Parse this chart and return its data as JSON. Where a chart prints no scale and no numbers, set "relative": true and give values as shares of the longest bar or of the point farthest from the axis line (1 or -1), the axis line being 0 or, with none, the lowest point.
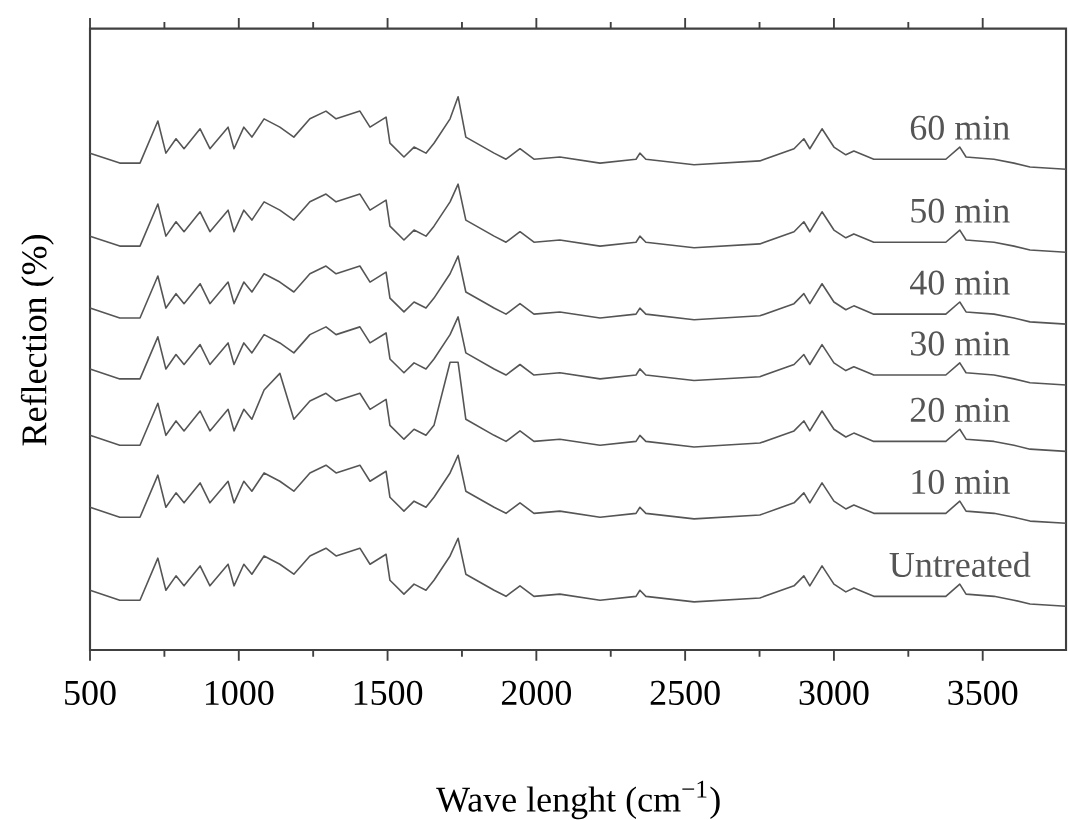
{
  "chart_data": {
    "type": "line",
    "relative": true,
    "xlabel": "Wave lenght (cm$^{−1}$)",
    "ylabel": "Reflection (%)",
    "xlim": [
      500,
      3780
    ],
    "xticks": [
      500,
      1000,
      1500,
      2000,
      2500,
      3000,
      3500
    ],
    "marker": "none",
    "line_style": "solid",
    "x": [
      500,
      600,
      668,
      728,
      755,
      789,
      816,
      870,
      903,
      964,
      984,
      1017,
      1044,
      1085,
      1138,
      1185,
      1239,
      1293,
      1327,
      1407,
      1441,
      1495,
      1508,
      1555,
      1589,
      1629,
      1656,
      1710,
      1737,
      1763,
      1858,
      1898,
      1945,
      1992,
      2079,
      2214,
      2335,
      2348,
      2368,
      2530,
      2751,
      2866,
      2899,
      2919,
      2960,
      3000,
      3040,
      3067,
      3134,
      3376,
      3423,
      3444,
      3538,
      3605,
      3659,
      3780
    ],
    "series": [
      {
        "name": "60 min",
        "color": "#555555",
        "values": [
          0.898,
          0.88,
          0.88,
          0.956,
          0.898,
          0.924,
          0.906,
          0.942,
          0.906,
          0.945,
          0.906,
          0.945,
          0.927,
          0.96,
          0.945,
          0.927,
          0.96,
          0.974,
          0.96,
          0.974,
          0.945,
          0.963,
          0.916,
          0.891,
          0.909,
          0.898,
          0.916,
          0.96,
          1.0,
          0.927,
          0.898,
          0.887,
          0.906,
          0.887,
          0.891,
          0.88,
          0.887,
          0.898,
          0.887,
          0.877,
          0.884,
          0.906,
          0.924,
          0.906,
          0.942,
          0.909,
          0.895,
          0.902,
          0.887,
          0.887,
          0.909,
          0.891,
          0.887,
          0.88,
          0.873,
          0.869
        ]
      },
      {
        "name": "50 min",
        "color": "#555555",
        "values": [
          0.748,
          0.73,
          0.73,
          0.806,
          0.748,
          0.774,
          0.756,
          0.792,
          0.756,
          0.795,
          0.756,
          0.795,
          0.777,
          0.81,
          0.795,
          0.777,
          0.81,
          0.824,
          0.81,
          0.824,
          0.795,
          0.813,
          0.766,
          0.741,
          0.759,
          0.748,
          0.766,
          0.81,
          0.842,
          0.777,
          0.748,
          0.737,
          0.756,
          0.737,
          0.741,
          0.73,
          0.737,
          0.748,
          0.737,
          0.727,
          0.734,
          0.756,
          0.774,
          0.756,
          0.792,
          0.759,
          0.745,
          0.752,
          0.737,
          0.737,
          0.759,
          0.741,
          0.737,
          0.73,
          0.723,
          0.719
        ]
      },
      {
        "name": "40 min",
        "color": "#555555",
        "values": [
          0.618,
          0.6,
          0.6,
          0.676,
          0.618,
          0.644,
          0.626,
          0.662,
          0.626,
          0.665,
          0.626,
          0.665,
          0.647,
          0.68,
          0.665,
          0.647,
          0.68,
          0.694,
          0.68,
          0.694,
          0.665,
          0.683,
          0.636,
          0.611,
          0.629,
          0.618,
          0.636,
          0.68,
          0.712,
          0.647,
          0.618,
          0.607,
          0.626,
          0.607,
          0.611,
          0.6,
          0.607,
          0.618,
          0.607,
          0.597,
          0.604,
          0.626,
          0.644,
          0.626,
          0.662,
          0.629,
          0.615,
          0.622,
          0.607,
          0.607,
          0.629,
          0.611,
          0.607,
          0.6,
          0.593,
          0.589
        ]
      },
      {
        "name": "30 min",
        "color": "#555555",
        "values": [
          0.508,
          0.49,
          0.49,
          0.566,
          0.508,
          0.534,
          0.516,
          0.552,
          0.516,
          0.555,
          0.516,
          0.555,
          0.537,
          0.57,
          0.555,
          0.537,
          0.57,
          0.584,
          0.57,
          0.584,
          0.555,
          0.573,
          0.526,
          0.501,
          0.519,
          0.508,
          0.526,
          0.57,
          0.602,
          0.537,
          0.508,
          0.497,
          0.516,
          0.497,
          0.501,
          0.49,
          0.497,
          0.508,
          0.497,
          0.487,
          0.494,
          0.516,
          0.534,
          0.516,
          0.552,
          0.519,
          0.505,
          0.512,
          0.497,
          0.497,
          0.519,
          0.501,
          0.497,
          0.49,
          0.483,
          0.479
        ]
      },
      {
        "name": "20 min",
        "color": "#555555",
        "values": [
          0.388,
          0.37,
          0.37,
          0.446,
          0.388,
          0.414,
          0.396,
          0.432,
          0.396,
          0.435,
          0.396,
          0.435,
          0.417,
          0.47,
          0.5,
          0.417,
          0.45,
          0.464,
          0.45,
          0.464,
          0.435,
          0.453,
          0.406,
          0.381,
          0.399,
          0.388,
          0.406,
          0.52,
          0.52,
          0.417,
          0.388,
          0.377,
          0.396,
          0.377,
          0.381,
          0.37,
          0.377,
          0.388,
          0.377,
          0.367,
          0.374,
          0.396,
          0.414,
          0.396,
          0.432,
          0.399,
          0.385,
          0.392,
          0.377,
          0.377,
          0.399,
          0.381,
          0.377,
          0.37,
          0.363,
          0.359
        ]
      },
      {
        "name": "10 min",
        "color": "#555555",
        "values": [
          0.258,
          0.24,
          0.24,
          0.316,
          0.258,
          0.284,
          0.266,
          0.302,
          0.266,
          0.305,
          0.266,
          0.305,
          0.287,
          0.32,
          0.305,
          0.287,
          0.32,
          0.334,
          0.32,
          0.334,
          0.305,
          0.323,
          0.276,
          0.251,
          0.269,
          0.258,
          0.276,
          0.32,
          0.352,
          0.287,
          0.258,
          0.247,
          0.266,
          0.247,
          0.251,
          0.24,
          0.247,
          0.258,
          0.247,
          0.237,
          0.244,
          0.266,
          0.284,
          0.266,
          0.302,
          0.269,
          0.255,
          0.262,
          0.247,
          0.247,
          0.269,
          0.251,
          0.247,
          0.24,
          0.233,
          0.229
        ]
      },
      {
        "name": "Untreated",
        "color": "#555555",
        "values": [
          0.108,
          0.09,
          0.09,
          0.166,
          0.108,
          0.134,
          0.116,
          0.152,
          0.116,
          0.155,
          0.116,
          0.155,
          0.137,
          0.17,
          0.155,
          0.137,
          0.17,
          0.184,
          0.17,
          0.184,
          0.155,
          0.173,
          0.126,
          0.101,
          0.119,
          0.108,
          0.126,
          0.17,
          0.202,
          0.137,
          0.108,
          0.097,
          0.116,
          0.097,
          0.101,
          0.09,
          0.097,
          0.108,
          0.097,
          0.087,
          0.094,
          0.116,
          0.134,
          0.116,
          0.152,
          0.119,
          0.105,
          0.112,
          0.097,
          0.097,
          0.119,
          0.101,
          0.097,
          0.09,
          0.083,
          0.079
        ]
      }
    ]
  }
}
